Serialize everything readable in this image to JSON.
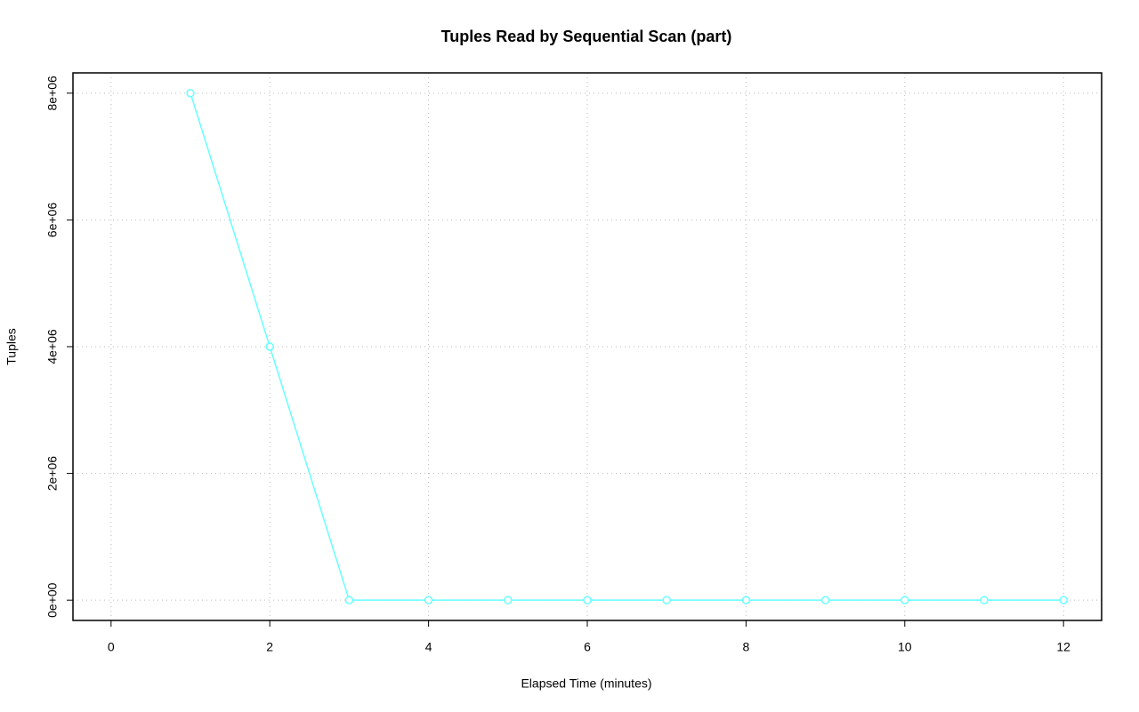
{
  "chart_data": {
    "type": "line",
    "title": "Tuples Read by Sequential Scan (part)",
    "x_label": "Elapsed Time (minutes)",
    "y_label": "Tuples",
    "x": [
      1,
      2,
      3,
      4,
      5,
      6,
      7,
      8,
      9,
      10,
      11,
      12
    ],
    "values": [
      8000000,
      4000000,
      0,
      0,
      0,
      0,
      0,
      0,
      0,
      0,
      0,
      0
    ],
    "color": "#66ffff",
    "xlim": [
      -0.48,
      12.48
    ],
    "xticks": [
      0,
      2,
      4,
      6,
      8,
      10,
      12
    ],
    "ylim": [
      -320000,
      8320000
    ],
    "yticks": [
      {
        "value": 0,
        "label": "0e+00"
      },
      {
        "value": 2000000,
        "label": "2e+06"
      },
      {
        "value": 4000000,
        "label": "4e+06"
      },
      {
        "value": 6000000,
        "label": "6e+06"
      },
      {
        "value": 8000000,
        "label": "8e+06"
      }
    ],
    "grid": true
  }
}
